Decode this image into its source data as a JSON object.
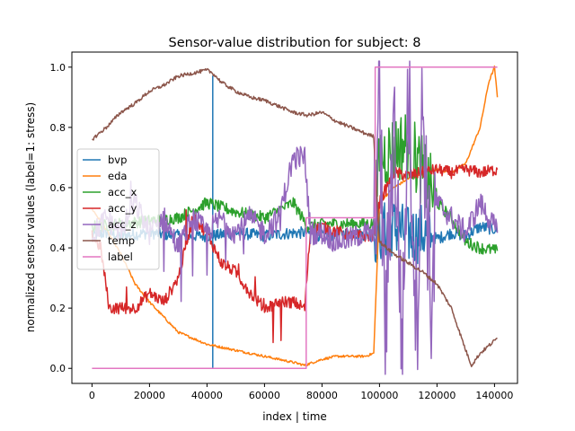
{
  "chart_data": {
    "type": "line",
    "title": "Sensor-value distribution for subject: 8",
    "xlabel": "index | time",
    "ylabel": "normalized sensor values (label=1: stress)",
    "xlim": [
      -7000,
      148000
    ],
    "ylim": [
      -0.05,
      1.05
    ],
    "xticks": [
      0,
      20000,
      40000,
      60000,
      80000,
      100000,
      120000,
      140000
    ],
    "xtick_labels": [
      "0",
      "20000",
      "40000",
      "60000",
      "80000",
      "100000",
      "120000",
      "140000"
    ],
    "yticks": [
      0.0,
      0.2,
      0.4,
      0.6,
      0.8,
      1.0
    ],
    "ytick_labels": [
      "0.0",
      "0.2",
      "0.4",
      "0.6",
      "0.8",
      "1.0"
    ],
    "grid": false,
    "legend_position": "center-left",
    "series": [
      {
        "name": "bvp",
        "color": "#1f77b4",
        "noise": 0.02,
        "x": [
          0,
          5000,
          10000,
          20000,
          30000,
          40000,
          42000,
          42001,
          42002,
          42003,
          50000,
          60000,
          70000,
          75000,
          80000,
          90000,
          98000,
          100000,
          105000,
          110000,
          115000,
          120000,
          125000,
          130000,
          135000,
          141000
        ],
        "y": [
          0.44,
          0.45,
          0.44,
          0.45,
          0.44,
          0.44,
          0.44,
          0.97,
          0.0,
          0.44,
          0.45,
          0.44,
          0.45,
          0.45,
          0.44,
          0.45,
          0.44,
          0.45,
          0.47,
          0.44,
          0.45,
          0.43,
          0.45,
          0.44,
          0.47,
          0.46
        ]
      },
      {
        "name": "eda",
        "color": "#ff7f0e",
        "noise": 0.004,
        "x": [
          0,
          5000,
          10000,
          15000,
          20000,
          25000,
          30000,
          35000,
          40000,
          45000,
          50000,
          55000,
          60000,
          65000,
          70000,
          74000,
          77000,
          80000,
          85000,
          90000,
          95000,
          98000,
          100000,
          105000,
          110000,
          115000,
          120000,
          125000,
          130000,
          135000,
          138000,
          140000,
          141000
        ],
        "y": [
          0.53,
          0.46,
          0.38,
          0.28,
          0.22,
          0.17,
          0.12,
          0.1,
          0.08,
          0.07,
          0.06,
          0.05,
          0.04,
          0.03,
          0.02,
          0.01,
          0.02,
          0.03,
          0.04,
          0.04,
          0.04,
          0.05,
          0.55,
          0.6,
          0.63,
          0.65,
          0.66,
          0.65,
          0.68,
          0.8,
          0.95,
          1.0,
          0.9
        ]
      },
      {
        "name": "acc_x",
        "color": "#2ca02c",
        "noise": 0.02,
        "x": [
          0,
          10000,
          20000,
          30000,
          40000,
          50000,
          60000,
          70000,
          75000,
          80000,
          90000,
          98000,
          100000,
          110000,
          120000,
          125000,
          130000,
          135000,
          141000
        ],
        "y": [
          0.47,
          0.48,
          0.49,
          0.5,
          0.55,
          0.52,
          0.5,
          0.55,
          0.47,
          0.48,
          0.48,
          0.48,
          0.7,
          0.75,
          0.55,
          0.5,
          0.42,
          0.4,
          0.39
        ]
      },
      {
        "name": "acc_y",
        "color": "#d62728",
        "noise": 0.02,
        "x": [
          0,
          3000,
          6000,
          10000,
          15000,
          20000,
          25000,
          30000,
          35000,
          40000,
          45000,
          50000,
          55000,
          60000,
          65000,
          70000,
          74000,
          76000,
          80000,
          90000,
          98000,
          100000,
          105000,
          110000,
          115000,
          120000,
          125000,
          130000,
          135000,
          141000
        ],
        "y": [
          0.44,
          0.4,
          0.2,
          0.2,
          0.2,
          0.25,
          0.22,
          0.3,
          0.5,
          0.45,
          0.35,
          0.32,
          0.25,
          0.2,
          0.22,
          0.22,
          0.2,
          0.46,
          0.47,
          0.44,
          0.44,
          0.55,
          0.65,
          0.64,
          0.65,
          0.66,
          0.65,
          0.66,
          0.65,
          0.66
        ]
      },
      {
        "name": "acc_z",
        "color": "#9467bd",
        "noise": 0.04,
        "x": [
          0,
          5000,
          10000,
          15000,
          20000,
          25000,
          30000,
          35000,
          40000,
          45000,
          50000,
          55000,
          60000,
          65000,
          70000,
          74000,
          76000,
          80000,
          85000,
          90000,
          95000,
          98000,
          100000,
          102000,
          105000,
          108000,
          110000,
          113000,
          115000,
          118000,
          120000,
          125000,
          130000,
          135000,
          141000
        ],
        "y": [
          0.44,
          0.5,
          0.45,
          0.55,
          0.45,
          0.5,
          0.4,
          0.5,
          0.45,
          0.5,
          0.45,
          0.5,
          0.45,
          0.5,
          0.7,
          0.7,
          0.45,
          0.45,
          0.42,
          0.43,
          0.45,
          0.44,
          0.9,
          0.1,
          0.85,
          0.05,
          0.95,
          0.15,
          0.9,
          0.2,
          0.55,
          0.5,
          0.45,
          0.55,
          0.45
        ]
      },
      {
        "name": "temp",
        "color": "#8c564b",
        "noise": 0.006,
        "x": [
          0,
          5000,
          10000,
          15000,
          20000,
          25000,
          30000,
          35000,
          40000,
          42000,
          45000,
          50000,
          55000,
          60000,
          65000,
          70000,
          75000,
          80000,
          85000,
          90000,
          95000,
          98000,
          100000,
          105000,
          110000,
          115000,
          120000,
          125000,
          130000,
          132000,
          135000,
          141000
        ],
        "y": [
          0.76,
          0.8,
          0.85,
          0.88,
          0.92,
          0.94,
          0.97,
          0.98,
          0.99,
          0.98,
          0.95,
          0.92,
          0.9,
          0.89,
          0.87,
          0.85,
          0.84,
          0.85,
          0.82,
          0.8,
          0.78,
          0.77,
          0.42,
          0.38,
          0.35,
          0.32,
          0.28,
          0.2,
          0.06,
          0.01,
          0.05,
          0.1
        ]
      },
      {
        "name": "label",
        "color": "#e377c2",
        "noise": 0,
        "x": [
          0,
          74500,
          74500,
          98500,
          98500,
          141000
        ],
        "y": [
          0.0,
          0.0,
          0.5,
          0.5,
          1.0,
          1.0
        ]
      }
    ]
  }
}
